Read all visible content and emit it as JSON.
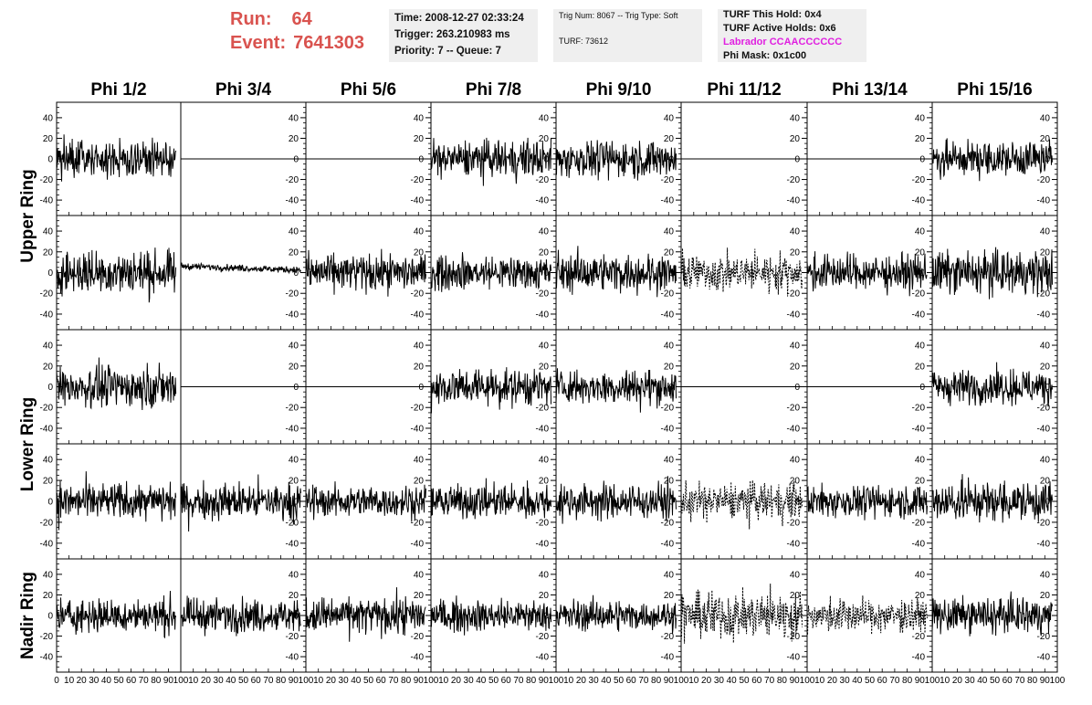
{
  "header": {
    "run_label": "Run:",
    "run_value": "64",
    "event_label": "Event:",
    "event_value": "7641303",
    "time": "Time: 2008-12-27 02:33:24",
    "trigger": "Trigger: 263.210983 ms",
    "priority_queue": "Priority: 7 -- Queue: 7",
    "trig_num_type": "Trig Num: 8067 -- Trig Type: Soft",
    "turf": "TURF: 73612",
    "turf_this_hold": "TURF This Hold: 0x4",
    "turf_active_holds": "TURF Active Holds: 0x6",
    "labrador": "Labrador CCAACCCCCC",
    "phi_mask": "Phi Mask: 0x1c00",
    "colors": {
      "run_event": "#d9534f",
      "labrador": "#e020e0",
      "info_bg": "#efefef"
    }
  },
  "chart_data": {
    "type": "line",
    "columns": [
      "Phi 1/2",
      "Phi 3/4",
      "Phi 5/6",
      "Phi 7/8",
      "Phi 9/10",
      "Phi 11/12",
      "Phi 13/14",
      "Phi 15/16"
    ],
    "row_groups": [
      {
        "label": "Upper Ring",
        "rows": [
          0,
          1
        ]
      },
      {
        "label": "Lower Ring",
        "rows": [
          2,
          3
        ]
      },
      {
        "label": "Nadir Ring",
        "rows": [
          4
        ]
      }
    ],
    "xlim": [
      0,
      100
    ],
    "ylim": [
      -55,
      55
    ],
    "x_ticks": [
      0,
      10,
      20,
      30,
      40,
      50,
      60,
      70,
      80,
      90,
      100
    ],
    "x_tick_labels": [
      "0",
      "10",
      "20",
      "30",
      "40",
      "50",
      "60",
      "70",
      "80",
      "90",
      "100"
    ],
    "y_ticks": [
      -40,
      -20,
      0,
      20,
      40
    ],
    "y_tick_labels": [
      "-40",
      "-20",
      "0",
      "20",
      "40"
    ],
    "samples_per_trace": 260,
    "x_max_trace": 96,
    "panels": [
      [
        "noise:14",
        "flat",
        "flat",
        "noise:14",
        "noise:14",
        "flat",
        "flat",
        "noise:14"
      ],
      [
        "noise:16",
        "small:7",
        "noise:14",
        "noise:13",
        "noise:14",
        "dashed:14",
        "noise:13",
        "noise:16"
      ],
      [
        "noise:15",
        "flat",
        "flat",
        "noise:14",
        "noise:13",
        "flat",
        "flat",
        "noise:13"
      ],
      [
        "noise:14",
        "noise:14",
        "noise:12",
        "noise:13",
        "noise:13",
        "dashed:14",
        "noise:12",
        "noise:15"
      ],
      [
        "noise:13",
        "noise:12",
        "noise:14",
        "noise:12",
        "noise:11",
        "dashed:18",
        "dashed:12",
        "noise:13"
      ]
    ]
  }
}
